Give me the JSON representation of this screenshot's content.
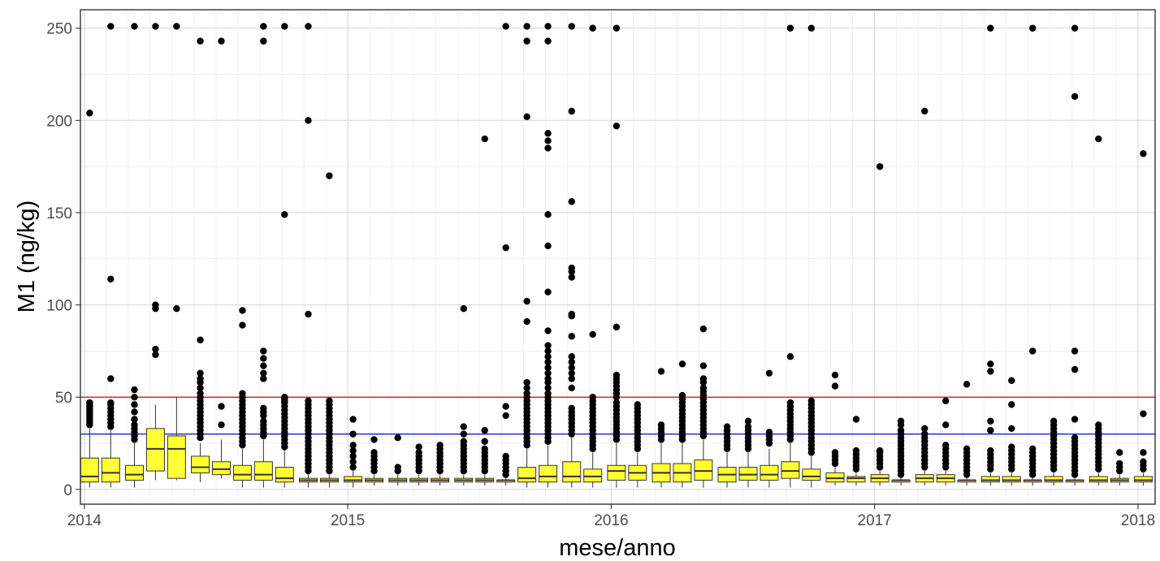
{
  "chart_data": {
    "type": "box",
    "xlabel": "mese/anno",
    "ylabel": "M1 (ng/kg)",
    "ylim": [
      -8,
      260
    ],
    "xlim": [
      2013.985,
      2018.065
    ],
    "x_ticks": [
      2014,
      2015,
      2016,
      2017,
      2018
    ],
    "x_tick_labels": [
      "2014",
      "2015",
      "2016",
      "2017",
      "2018"
    ],
    "y_ticks": [
      0,
      50,
      100,
      150,
      200,
      250
    ],
    "y_tick_labels": [
      "0",
      "50",
      "100",
      "150",
      "200",
      "250"
    ],
    "grid": true,
    "legend": "none",
    "box_fill": "#ffff33",
    "reference_lines": [
      {
        "y": 50,
        "color": "#e8232b"
      },
      {
        "y": 30,
        "color": "#2727d4"
      }
    ],
    "boxes": [
      {
        "x": 2014.02,
        "low": 1,
        "q1": 4,
        "median": 7,
        "q3": 17,
        "high": 33,
        "outliers": [
          35,
          36,
          37,
          38,
          39,
          40,
          41,
          42,
          43,
          44,
          45,
          46,
          47,
          47,
          204
        ]
      },
      {
        "x": 2014.1,
        "low": 1,
        "q1": 4,
        "median": 9,
        "q3": 17,
        "high": 32,
        "outliers": [
          34,
          36,
          38,
          40,
          42,
          44,
          46,
          47,
          60,
          114,
          251
        ]
      },
      {
        "x": 2014.19,
        "low": 1,
        "q1": 5,
        "median": 8,
        "q3": 13,
        "high": 25,
        "outliers": [
          27,
          29,
          31,
          33,
          35,
          38,
          42,
          46,
          50,
          54,
          251
        ]
      },
      {
        "x": 2014.27,
        "low": 5,
        "q1": 10,
        "median": 22,
        "q3": 33,
        "high": 46,
        "outliers": [
          73,
          76,
          98,
          100,
          251
        ]
      },
      {
        "x": 2014.35,
        "low": 5,
        "q1": 6,
        "median": 22,
        "q3": 29,
        "high": 50,
        "outliers": [
          98,
          251
        ]
      },
      {
        "x": 2014.44,
        "low": 4,
        "q1": 9,
        "median": 12,
        "q3": 18,
        "high": 25,
        "outliers": [
          28,
          30,
          32,
          34,
          36,
          38,
          40,
          42,
          44,
          46,
          48,
          50,
          52,
          55,
          58,
          60,
          63,
          81,
          243
        ]
      },
      {
        "x": 2014.52,
        "low": 6,
        "q1": 8,
        "median": 11,
        "q3": 15,
        "high": 27,
        "outliers": [
          35,
          45,
          243
        ]
      },
      {
        "x": 2014.6,
        "low": 1,
        "q1": 5,
        "median": 8,
        "q3": 13,
        "high": 22,
        "outliers": [
          24,
          26,
          28,
          30,
          32,
          34,
          36,
          38,
          40,
          42,
          44,
          46,
          48,
          50,
          52,
          89,
          97
        ]
      },
      {
        "x": 2014.68,
        "low": 1,
        "q1": 5,
        "median": 8,
        "q3": 15,
        "high": 27,
        "outliers": [
          29,
          31,
          33,
          35,
          37,
          40,
          42,
          44,
          60,
          63,
          67,
          71,
          75,
          243,
          251
        ]
      },
      {
        "x": 2014.76,
        "low": 1,
        "q1": 4,
        "median": 6,
        "q3": 12,
        "high": 21,
        "outliers": [
          23,
          25,
          27,
          29,
          31,
          33,
          35,
          37,
          39,
          41,
          43,
          45,
          47,
          48,
          49,
          50,
          149,
          251
        ]
      },
      {
        "x": 2014.85,
        "low": 1,
        "q1": 4,
        "median": 5,
        "q3": 6,
        "high": 8,
        "outliers": [
          10,
          12,
          14,
          16,
          18,
          20,
          22,
          24,
          26,
          28,
          30,
          32,
          34,
          36,
          38,
          40,
          42,
          44,
          46,
          48,
          95,
          200,
          251
        ]
      },
      {
        "x": 2014.93,
        "low": 1,
        "q1": 4,
        "median": 5,
        "q3": 6,
        "high": 8,
        "outliers": [
          10,
          12,
          14,
          16,
          18,
          20,
          22,
          24,
          26,
          28,
          30,
          32,
          34,
          36,
          38,
          40,
          42,
          44,
          46,
          48,
          170
        ]
      },
      {
        "x": 2015.02,
        "low": 1,
        "q1": 4,
        "median": 5,
        "q3": 7,
        "high": 10,
        "outliers": [
          12,
          15,
          18,
          21,
          24,
          30,
          38
        ]
      },
      {
        "x": 2015.1,
        "low": 2,
        "q1": 4,
        "median": 5,
        "q3": 6,
        "high": 8,
        "outliers": [
          10,
          12,
          14,
          16,
          18,
          20,
          27
        ]
      },
      {
        "x": 2015.19,
        "low": 2,
        "q1": 4,
        "median": 5,
        "q3": 6,
        "high": 8,
        "outliers": [
          10,
          12,
          28
        ]
      },
      {
        "x": 2015.27,
        "low": 2,
        "q1": 4,
        "median": 5,
        "q3": 6,
        "high": 8,
        "outliers": [
          10,
          12,
          14,
          16,
          18,
          20,
          23
        ]
      },
      {
        "x": 2015.35,
        "low": 2,
        "q1": 4,
        "median": 5,
        "q3": 6,
        "high": 8,
        "outliers": [
          10,
          12,
          14,
          16,
          18,
          20,
          22,
          24
        ]
      },
      {
        "x": 2015.44,
        "low": 2,
        "q1": 4,
        "median": 5,
        "q3": 6,
        "high": 8,
        "outliers": [
          10,
          12,
          14,
          16,
          18,
          20,
          22,
          24,
          26,
          30,
          34,
          98
        ]
      },
      {
        "x": 2015.52,
        "low": 2,
        "q1": 4,
        "median": 5,
        "q3": 6,
        "high": 8,
        "outliers": [
          10,
          12,
          14,
          16,
          18,
          20,
          22,
          26,
          32,
          190
        ]
      },
      {
        "x": 2015.6,
        "low": 2,
        "q1": 4,
        "median": 5,
        "q3": 5,
        "high": 6,
        "outliers": [
          8,
          10,
          12,
          14,
          16,
          18,
          40,
          45,
          131,
          251
        ]
      },
      {
        "x": 2015.68,
        "low": 1,
        "q1": 4,
        "median": 6,
        "q3": 12,
        "high": 22,
        "outliers": [
          24,
          26,
          28,
          30,
          32,
          34,
          36,
          38,
          40,
          42,
          44,
          46,
          48,
          50,
          52,
          55,
          58,
          91,
          102,
          202,
          243,
          251
        ]
      },
      {
        "x": 2015.76,
        "low": 1,
        "q1": 4,
        "median": 7,
        "q3": 13,
        "high": 24,
        "outliers": [
          26,
          28,
          30,
          32,
          34,
          36,
          38,
          40,
          42,
          44,
          46,
          48,
          50,
          52,
          55,
          58,
          60,
          63,
          66,
          69,
          72,
          75,
          78,
          86,
          107,
          132,
          149,
          185,
          189,
          193,
          243,
          251
        ]
      },
      {
        "x": 2015.85,
        "low": 1,
        "q1": 4,
        "median": 7,
        "q3": 15,
        "high": 28,
        "outliers": [
          30,
          32,
          34,
          36,
          38,
          40,
          42,
          44,
          55,
          60,
          63,
          66,
          69,
          72,
          83,
          94,
          95,
          115,
          118,
          120,
          156,
          205,
          251
        ]
      },
      {
        "x": 2015.93,
        "low": 1,
        "q1": 4,
        "median": 7,
        "q3": 11,
        "high": 20,
        "outliers": [
          22,
          24,
          26,
          28,
          30,
          32,
          34,
          36,
          38,
          40,
          42,
          44,
          46,
          48,
          50,
          84,
          250
        ]
      },
      {
        "x": 2016.02,
        "low": 1,
        "q1": 5,
        "median": 10,
        "q3": 13,
        "high": 25,
        "outliers": [
          27,
          29,
          31,
          33,
          35,
          37,
          39,
          41,
          43,
          45,
          47,
          50,
          52,
          54,
          56,
          58,
          60,
          62,
          88,
          197,
          250
        ]
      },
      {
        "x": 2016.1,
        "low": 1,
        "q1": 5,
        "median": 9,
        "q3": 13,
        "high": 20,
        "outliers": [
          22,
          24,
          26,
          28,
          30,
          32,
          34,
          36,
          38,
          40,
          42,
          44,
          46
        ]
      },
      {
        "x": 2016.19,
        "low": 1,
        "q1": 4,
        "median": 9,
        "q3": 14,
        "high": 25,
        "outliers": [
          27,
          29,
          31,
          33,
          35,
          64
        ]
      },
      {
        "x": 2016.27,
        "low": 1,
        "q1": 4,
        "median": 9,
        "q3": 14,
        "high": 25,
        "outliers": [
          27,
          29,
          31,
          33,
          35,
          37,
          39,
          41,
          43,
          45,
          47,
          49,
          51,
          68
        ]
      },
      {
        "x": 2016.35,
        "low": 1,
        "q1": 5,
        "median": 10,
        "q3": 16,
        "high": 27,
        "outliers": [
          29,
          31,
          33,
          35,
          37,
          39,
          41,
          43,
          45,
          47,
          49,
          51,
          53,
          55,
          58,
          60,
          67,
          87
        ]
      },
      {
        "x": 2016.44,
        "low": 1,
        "q1": 4,
        "median": 8,
        "q3": 12,
        "high": 20,
        "outliers": [
          22,
          24,
          26,
          28,
          30,
          32,
          34
        ]
      },
      {
        "x": 2016.52,
        "low": 1,
        "q1": 5,
        "median": 8,
        "q3": 12,
        "high": 20,
        "outliers": [
          22,
          24,
          26,
          28,
          30,
          32,
          34,
          37
        ]
      },
      {
        "x": 2016.6,
        "low": 1,
        "q1": 5,
        "median": 8,
        "q3": 13,
        "high": 22,
        "outliers": [
          25,
          27,
          29,
          31,
          63
        ]
      },
      {
        "x": 2016.68,
        "low": 1,
        "q1": 6,
        "median": 10,
        "q3": 15,
        "high": 25,
        "outliers": [
          27,
          29,
          31,
          33,
          35,
          37,
          39,
          41,
          43,
          45,
          47,
          72,
          250
        ]
      },
      {
        "x": 2016.76,
        "low": 1,
        "q1": 5,
        "median": 7,
        "q3": 11,
        "high": 18,
        "outliers": [
          20,
          22,
          24,
          26,
          28,
          30,
          32,
          34,
          36,
          38,
          40,
          42,
          44,
          46,
          48,
          250
        ]
      },
      {
        "x": 2016.85,
        "low": 2,
        "q1": 4,
        "median": 6,
        "q3": 9,
        "high": 12,
        "outliers": [
          14,
          16,
          18,
          20,
          56,
          62
        ]
      },
      {
        "x": 2016.93,
        "low": 2,
        "q1": 4,
        "median": 6,
        "q3": 7,
        "high": 9,
        "outliers": [
          11,
          13,
          15,
          17,
          19,
          21,
          38
        ]
      },
      {
        "x": 2017.02,
        "low": 2,
        "q1": 4,
        "median": 6,
        "q3": 8,
        "high": 10,
        "outliers": [
          12,
          14,
          16,
          18,
          20,
          21,
          175
        ]
      },
      {
        "x": 2017.1,
        "low": 2,
        "q1": 4,
        "median": 5,
        "q3": 5,
        "high": 6,
        "outliers": [
          8,
          10,
          12,
          14,
          16,
          18,
          20,
          22,
          24,
          26,
          28,
          30,
          32,
          35,
          37
        ]
      },
      {
        "x": 2017.19,
        "low": 2,
        "q1": 4,
        "median": 6,
        "q3": 8,
        "high": 10,
        "outliers": [
          12,
          14,
          16,
          18,
          20,
          22,
          24,
          26,
          28,
          30,
          33,
          205
        ]
      },
      {
        "x": 2017.27,
        "low": 2,
        "q1": 4,
        "median": 6,
        "q3": 8,
        "high": 10,
        "outliers": [
          12,
          14,
          16,
          18,
          20,
          22,
          24,
          35,
          48
        ]
      },
      {
        "x": 2017.35,
        "low": 2,
        "q1": 4,
        "median": 5,
        "q3": 5,
        "high": 6,
        "outliers": [
          8,
          10,
          12,
          14,
          16,
          18,
          20,
          22,
          57
        ]
      },
      {
        "x": 2017.44,
        "low": 2,
        "q1": 4,
        "median": 5,
        "q3": 7,
        "high": 9,
        "outliers": [
          11,
          13,
          15,
          17,
          19,
          21,
          32,
          37,
          64,
          68,
          250
        ]
      },
      {
        "x": 2017.52,
        "low": 2,
        "q1": 4,
        "median": 5,
        "q3": 7,
        "high": 9,
        "outliers": [
          11,
          13,
          15,
          17,
          19,
          21,
          23,
          33,
          46,
          59
        ]
      },
      {
        "x": 2017.6,
        "low": 2,
        "q1": 4,
        "median": 5,
        "q3": 5,
        "high": 6,
        "outliers": [
          8,
          10,
          12,
          14,
          16,
          18,
          20,
          22,
          75,
          250
        ]
      },
      {
        "x": 2017.68,
        "low": 2,
        "q1": 4,
        "median": 5,
        "q3": 7,
        "high": 9,
        "outliers": [
          11,
          13,
          15,
          17,
          19,
          21,
          23,
          25,
          27,
          29,
          31,
          33,
          35,
          37
        ]
      },
      {
        "x": 2017.76,
        "low": 2,
        "q1": 4,
        "median": 5,
        "q3": 5,
        "high": 6,
        "outliers": [
          8,
          10,
          12,
          14,
          16,
          18,
          20,
          22,
          24,
          26,
          28,
          38,
          65,
          75,
          213,
          250
        ]
      },
      {
        "x": 2017.85,
        "low": 2,
        "q1": 4,
        "median": 5,
        "q3": 7,
        "high": 9,
        "outliers": [
          11,
          13,
          15,
          17,
          19,
          21,
          23,
          25,
          27,
          29,
          31,
          33,
          35,
          190
        ]
      },
      {
        "x": 2017.93,
        "low": 2,
        "q1": 4,
        "median": 5,
        "q3": 6,
        "high": 8,
        "outliers": [
          10,
          12,
          14,
          20
        ]
      },
      {
        "x": 2018.02,
        "low": 2,
        "q1": 4,
        "median": 5,
        "q3": 7,
        "high": 9,
        "outliers": [
          11,
          13,
          15,
          20,
          41,
          182
        ]
      }
    ]
  }
}
